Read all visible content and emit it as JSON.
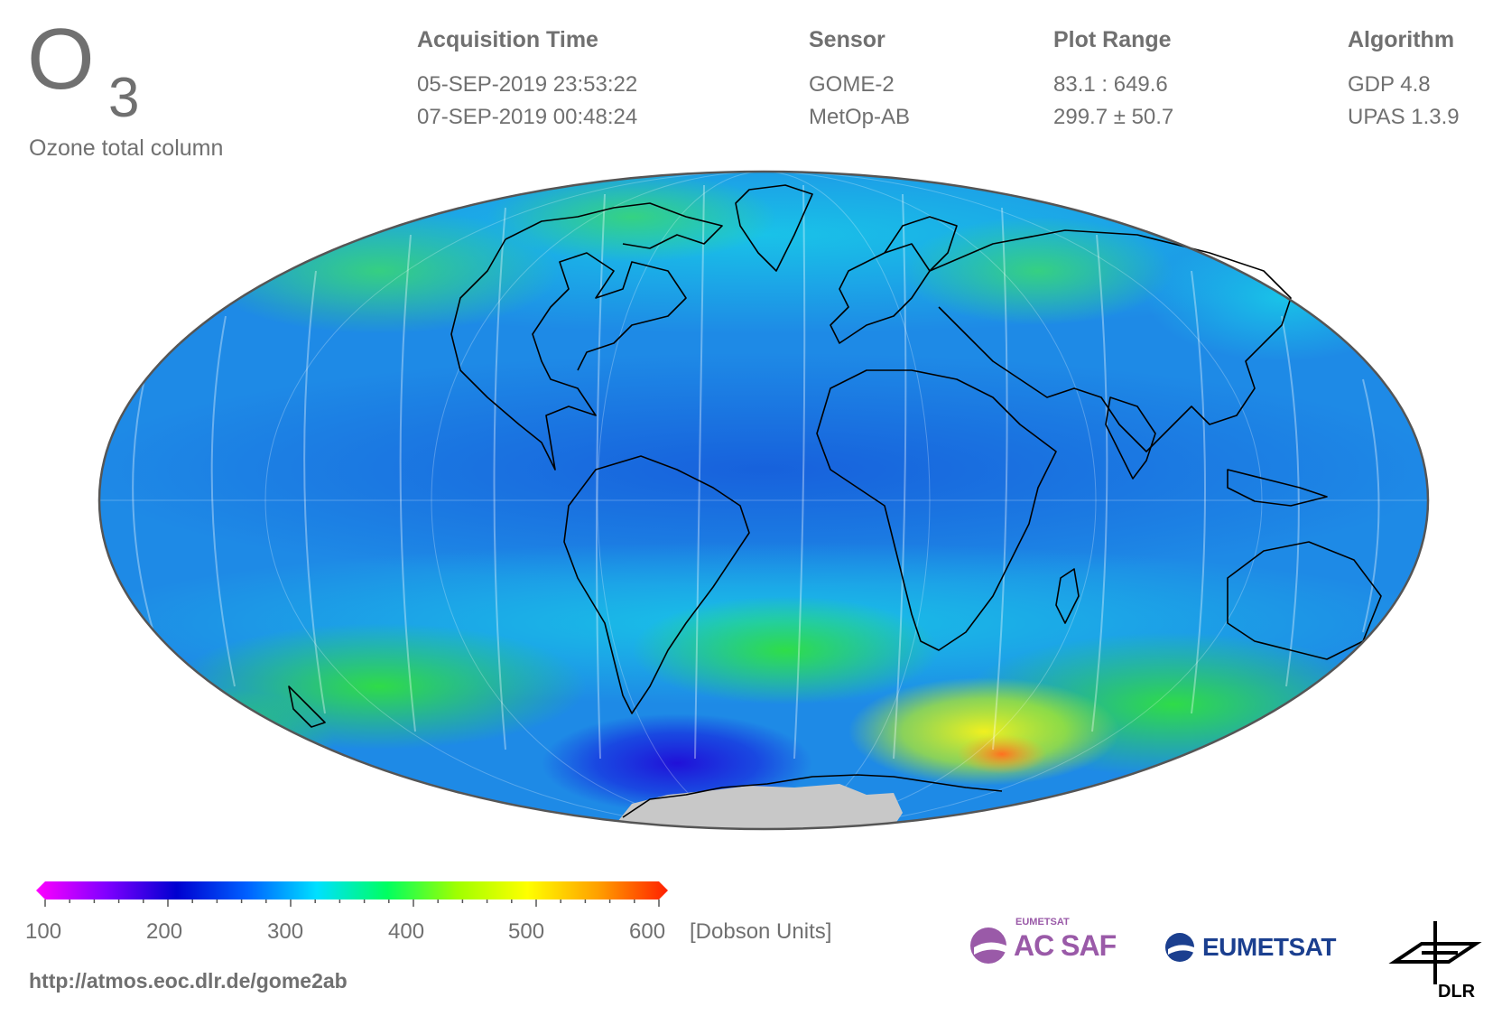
{
  "header": {
    "title_main": "O",
    "title_sub": "3",
    "subtitle": "Ozone total column"
  },
  "info_columns": [
    {
      "header": "Acquisition Time",
      "line1": "05-SEP-2019 23:53:22",
      "line2": "07-SEP-2019 00:48:24"
    },
    {
      "header": "Sensor",
      "line1": "GOME-2",
      "line2": "MetOp-AB"
    },
    {
      "header": "Plot Range",
      "line1": "83.1 : 649.6",
      "line2": "299.7 ± 50.7"
    },
    {
      "header": "Algorithm",
      "line1": "GDP 4.8",
      "line2": "UPAS 1.3.9"
    }
  ],
  "colorbar": {
    "ticks": [
      "100",
      "200",
      "300",
      "400",
      "500",
      "600"
    ],
    "units": "[Dobson Units]",
    "colors": [
      "#ff00ff",
      "#8000ff",
      "#0000d0",
      "#0060ff",
      "#00e0ff",
      "#00ff60",
      "#a0ff00",
      "#ffff00",
      "#ffa000",
      "#ff2000"
    ]
  },
  "footer": {
    "url": "http://atmos.eoc.dlr.de/gome2ab"
  },
  "logos": {
    "acsaf_small": "EUMETSAT",
    "acsaf": "AC SAF",
    "eumetsat": "EUMETSAT",
    "dlr": "DLR"
  },
  "map": {
    "projection": "Mollweide",
    "ocean_base": "#1e88e8",
    "no_data_color": "#c8c8c8",
    "coastline_color": "#000000"
  }
}
